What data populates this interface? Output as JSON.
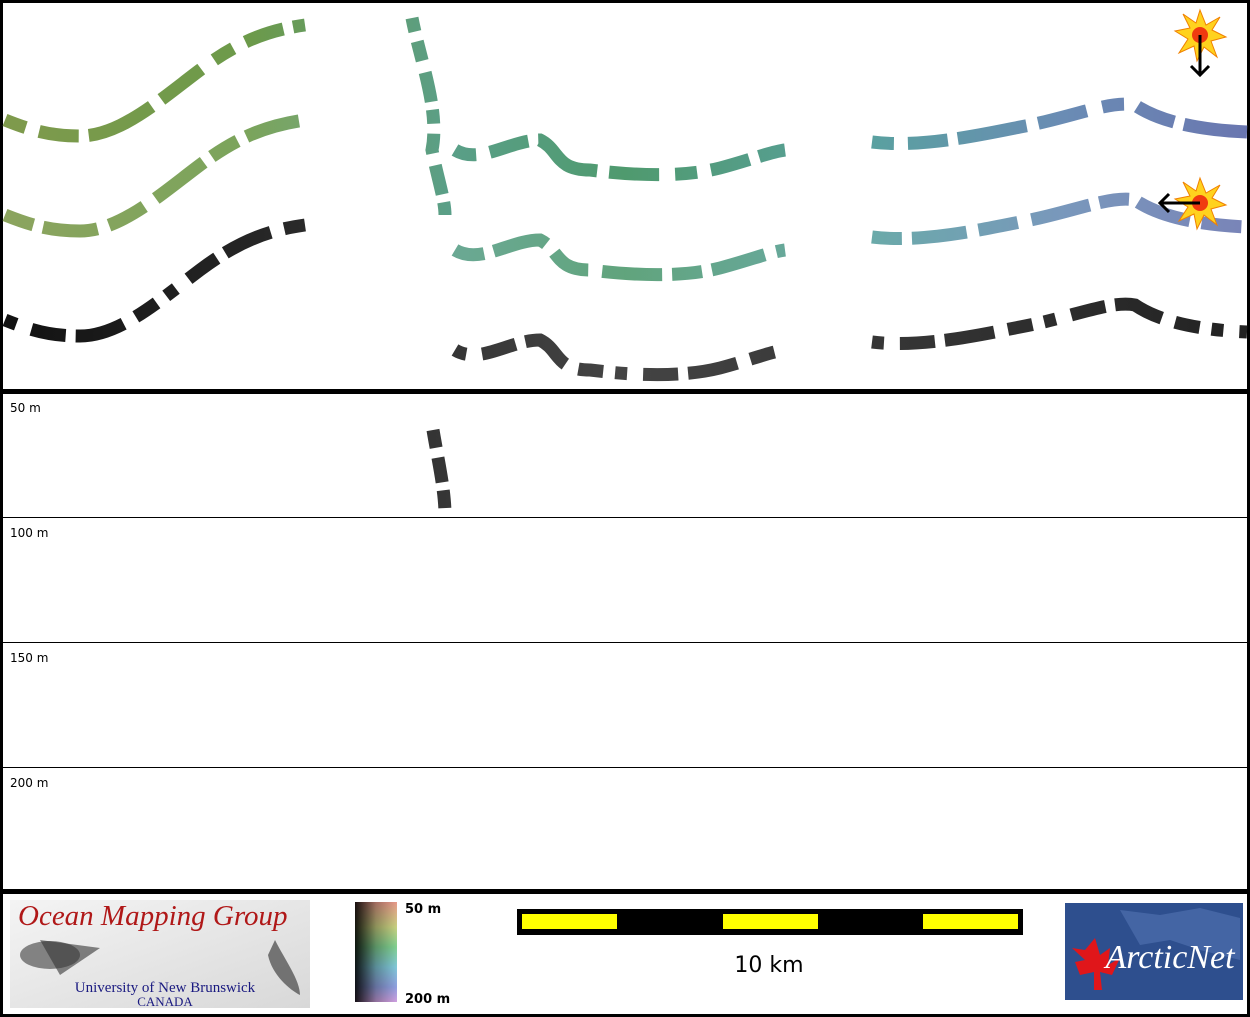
{
  "depth_rows": [
    "50 m",
    "100 m",
    "150 m",
    "200 m"
  ],
  "logo": {
    "title": "Ocean Mapping Group",
    "line1": "University of New Brunswick",
    "line2": "CANADA"
  },
  "colorbar": {
    "top": "50 m",
    "bottom": "200 m"
  },
  "scale_bar": {
    "label": "10 km"
  },
  "partner_logo": {
    "name": "ArcticNet"
  }
}
